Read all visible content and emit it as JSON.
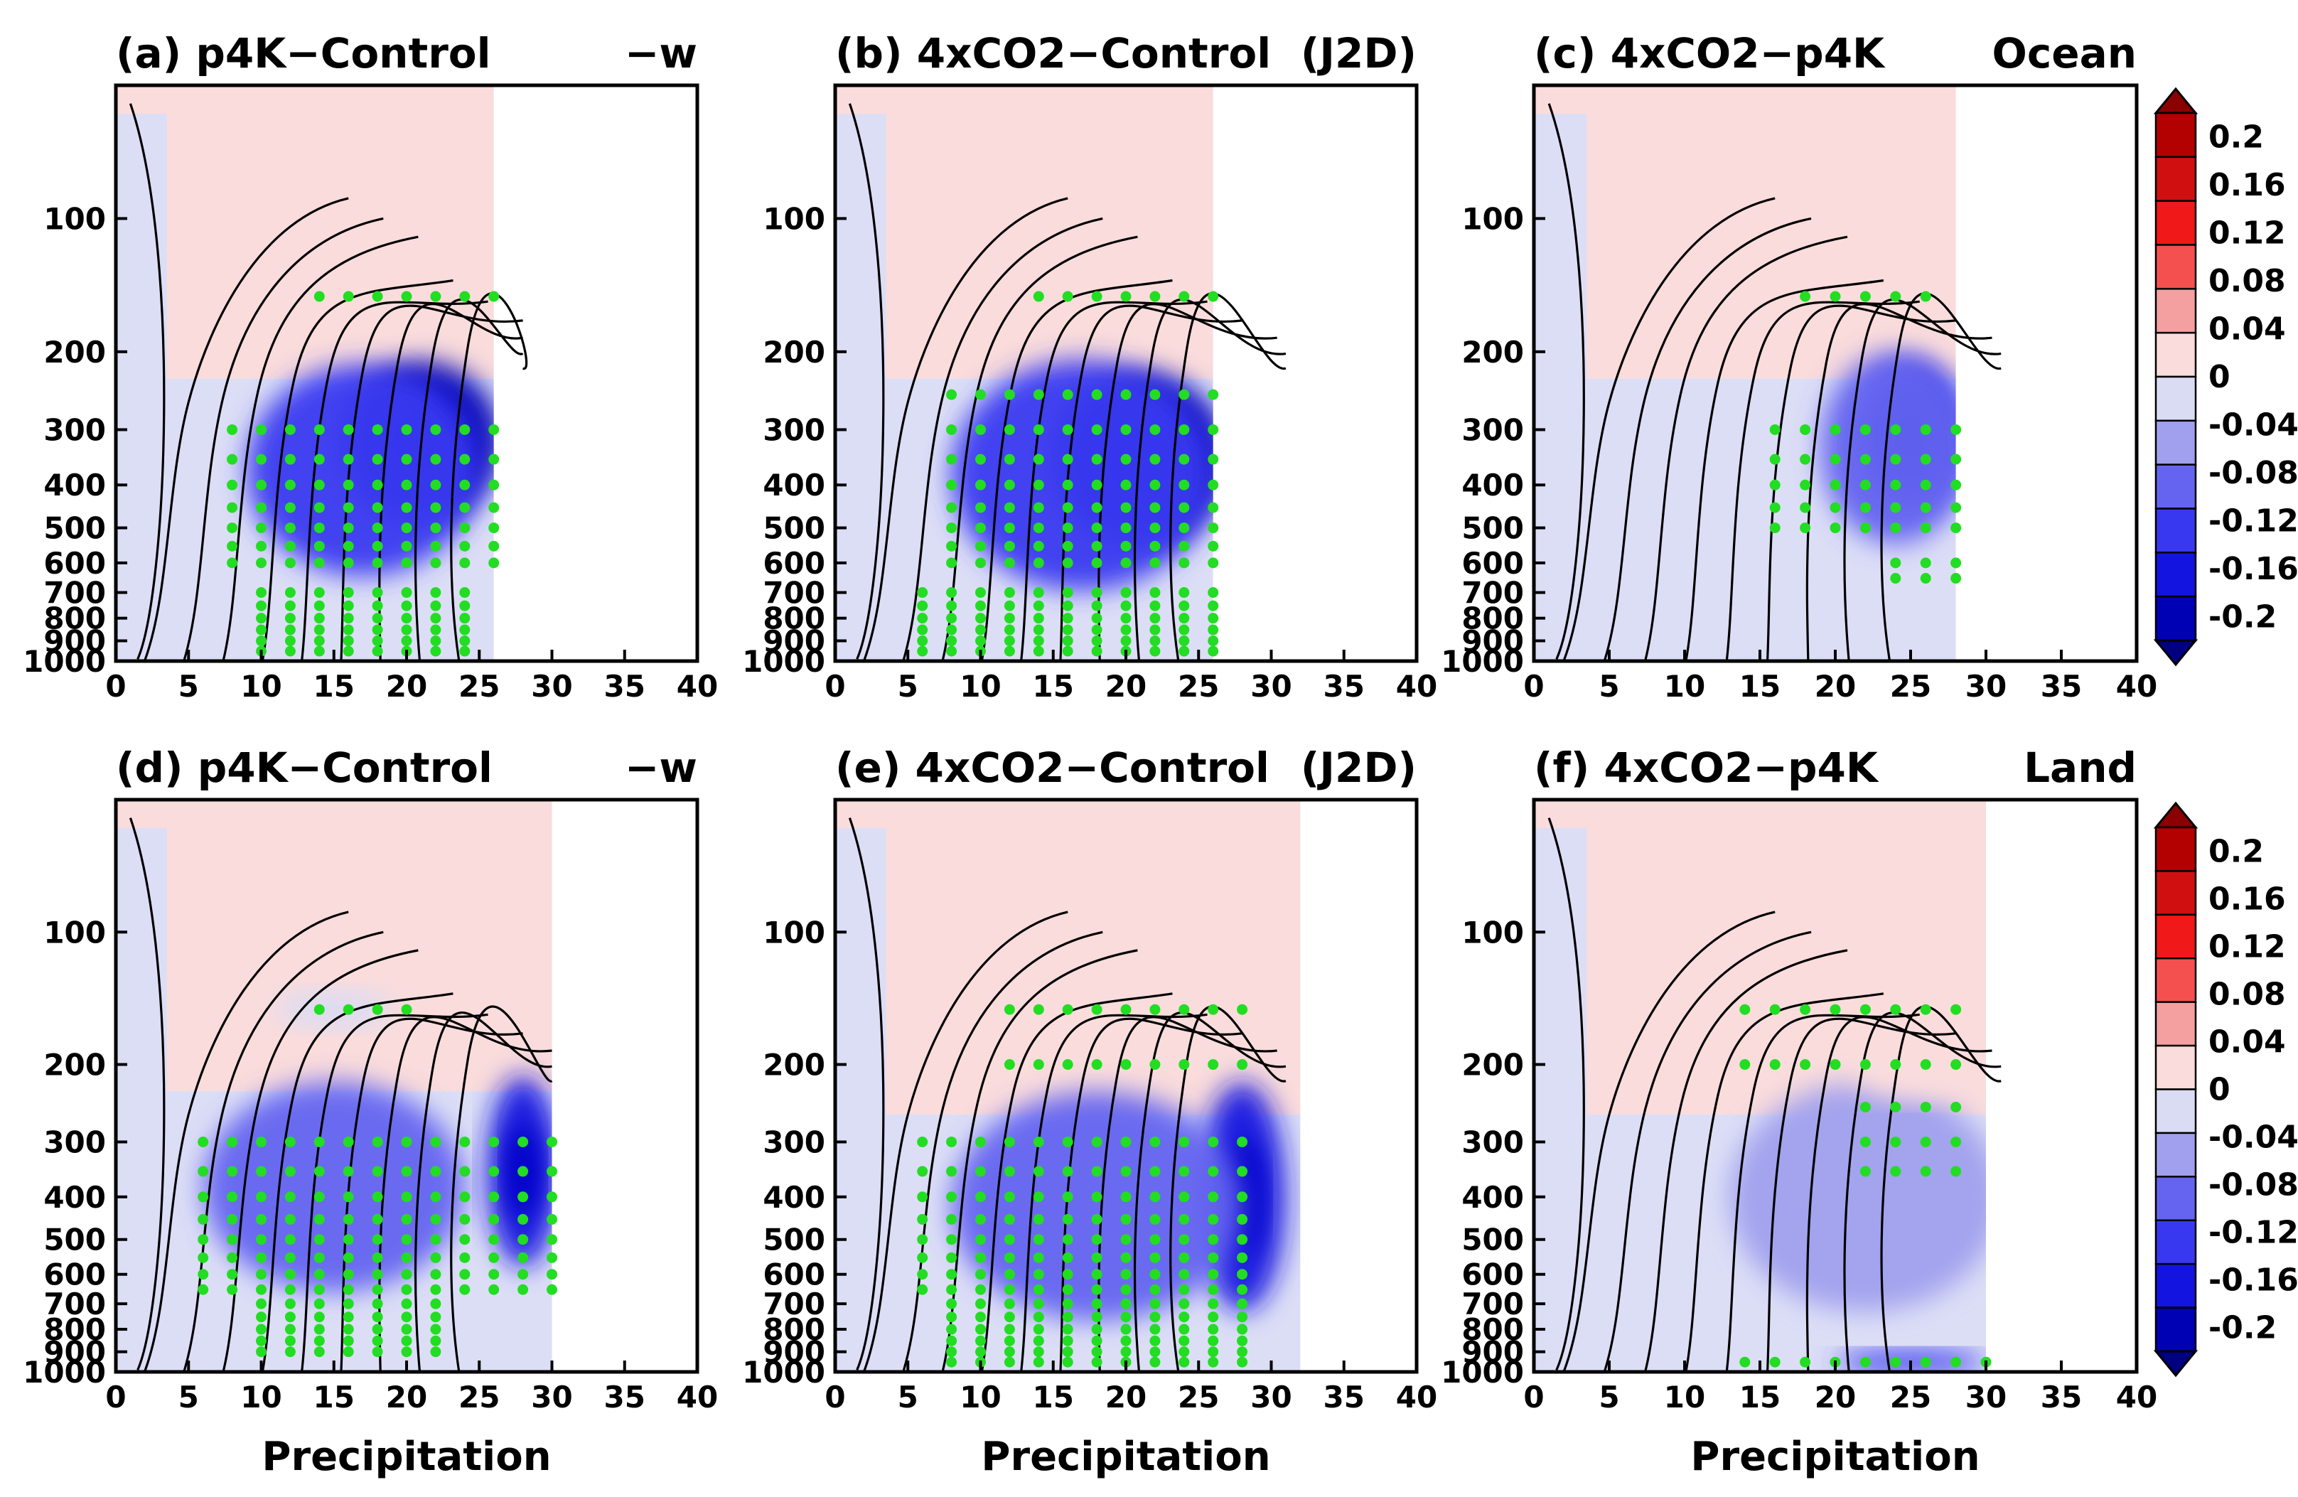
{
  "chart_data": {
    "type": "heatmap",
    "x_ticks": [
      0,
      5,
      10,
      15,
      20,
      25,
      30,
      35,
      40
    ],
    "xlim": [
      0,
      40
    ],
    "y_ticks": [
      100,
      200,
      300,
      400,
      500,
      600,
      700,
      800,
      900,
      1000
    ],
    "ylim": [
      1000,
      50
    ],
    "y_scale": "log",
    "colorbar": {
      "labels": [
        "0.2",
        "0.16",
        "0.12",
        "0.08",
        "0.04",
        "0",
        "-0.04",
        "-0.08",
        "-0.12",
        "-0.16",
        "-0.2"
      ],
      "levels": [
        0.2,
        0.16,
        0.12,
        0.08,
        0.04,
        0,
        -0.04,
        -0.08,
        -0.12,
        -0.16,
        -0.2
      ],
      "colors": [
        "#8b0000",
        "#b30000",
        "#d01010",
        "#f01818",
        "#f55050",
        "#f4a0a0",
        "#fadcdc",
        "#dadcf4",
        "#a0a0ee",
        "#6464f0",
        "#3838f0",
        "#1414e0",
        "#0000b4",
        "#000080"
      ]
    },
    "significance_color": "#22dd22",
    "panels": [
      {
        "id": "a",
        "title_left": "(a)  p4K−Control",
        "title_right": "−w",
        "xlabel": "",
        "x_max_data": 26,
        "blobs": [
          {
            "x": 21,
            "p": 320,
            "rx": 5.5,
            "ry": 0.42,
            "level": -0.18
          },
          {
            "x": 17,
            "p": 370,
            "rx": 8,
            "ry": 0.55,
            "level": -0.08
          },
          {
            "x": 16,
            "p": 150,
            "rx": 4,
            "ry": 0.12,
            "level": 0.05
          }
        ],
        "stipple": [
          {
            "x0": 14,
            "x1": 26,
            "p": [
              150
            ]
          },
          {
            "x0": 8,
            "x1": 26,
            "p": [
              300,
              350,
              400,
              450,
              500,
              550,
              600
            ]
          },
          {
            "x0": 10,
            "x1": 24,
            "p": [
              700,
              750,
              800,
              850,
              900,
              950
            ]
          }
        ]
      },
      {
        "id": "b",
        "title_left": "(b)  4xCO2−Control",
        "title_right": "(J2D)",
        "xlabel": "",
        "x_max_data": 26,
        "blobs": [
          {
            "x": 21,
            "p": 350,
            "rx": 6,
            "ry": 0.45,
            "level": -0.18
          },
          {
            "x": 17,
            "p": 380,
            "rx": 9,
            "ry": 0.6,
            "level": -0.08
          },
          {
            "x": 21,
            "p": 140,
            "rx": 6,
            "ry": 0.16,
            "level": 0.05
          }
        ],
        "stipple": [
          {
            "x0": 14,
            "x1": 26,
            "p": [
              150
            ]
          },
          {
            "x0": 8,
            "x1": 26,
            "p": [
              250,
              300,
              350,
              400,
              450,
              500,
              550,
              600
            ]
          },
          {
            "x0": 6,
            "x1": 26,
            "p": [
              700,
              750,
              800,
              850,
              900,
              950
            ]
          }
        ]
      },
      {
        "id": "c",
        "title_left": "(c)  4xCO2−p4K",
        "title_right": "Ocean",
        "xlabel": "",
        "x_max_data": 28,
        "blobs": [
          {
            "x": 25,
            "p": 310,
            "rx": 3.5,
            "ry": 0.38,
            "level": -0.12
          },
          {
            "x": 24,
            "p": 330,
            "rx": 5,
            "ry": 0.5,
            "level": -0.05
          },
          {
            "x": 22,
            "p": 150,
            "rx": 4,
            "ry": 0.12,
            "level": 0.05
          }
        ],
        "stipple": [
          {
            "x0": 18,
            "x1": 26,
            "p": [
              150
            ]
          },
          {
            "x0": 16,
            "x1": 28,
            "p": [
              300,
              350,
              400,
              450,
              500
            ]
          },
          {
            "x0": 24,
            "x1": 28,
            "p": [
              600,
              650
            ]
          }
        ]
      },
      {
        "id": "d",
        "title_left": "(d)  p4K−Control",
        "title_right": "−w",
        "xlabel": "Precipitation",
        "x_max_data": 30,
        "blobs": [
          {
            "x": 28,
            "p": 350,
            "rx": 2.5,
            "ry": 0.5,
            "level": -0.12
          },
          {
            "x": 15,
            "p": 380,
            "rx": 9,
            "ry": 0.55,
            "level": -0.05
          },
          {
            "x": 15,
            "p": 150,
            "rx": 4,
            "ry": 0.1,
            "level": 0.04
          }
        ],
        "stipple": [
          {
            "x0": 14,
            "x1": 20,
            "p": [
              150
            ]
          },
          {
            "x0": 6,
            "x1": 30,
            "p": [
              300,
              350,
              400,
              450,
              500,
              550,
              600,
              650
            ]
          },
          {
            "x0": 10,
            "x1": 22,
            "p": [
              700,
              750,
              800,
              850,
              900
            ]
          }
        ]
      },
      {
        "id": "e",
        "title_left": "(e)  4xCO2−Control",
        "title_right": "(J2D)",
        "xlabel": "Precipitation",
        "x_max_data": 32,
        "blobs": [
          {
            "x": 28,
            "p": 400,
            "rx": 3,
            "ry": 0.6,
            "level": -0.12
          },
          {
            "x": 18,
            "p": 420,
            "rx": 10,
            "ry": 0.6,
            "level": -0.05
          },
          {
            "x": 20,
            "p": 160,
            "rx": 8,
            "ry": 0.18,
            "level": 0.05
          }
        ],
        "stipple": [
          {
            "x0": 12,
            "x1": 28,
            "p": [
              150,
              200
            ]
          },
          {
            "x0": 6,
            "x1": 28,
            "p": [
              300,
              350,
              400,
              450,
              500,
              550,
              600,
              650
            ]
          },
          {
            "x0": 8,
            "x1": 28,
            "p": [
              700,
              750,
              800,
              850,
              900,
              950
            ]
          }
        ]
      },
      {
        "id": "f",
        "title_left": "(f)  4xCO2−p4K",
        "title_right": "Land",
        "xlabel": "Precipitation",
        "x_max_data": 30,
        "blobs": [
          {
            "x": 25,
            "p": 950,
            "rx": 5,
            "ry": 0.06,
            "level": -0.1
          },
          {
            "x": 22,
            "p": 400,
            "rx": 9,
            "ry": 0.6,
            "level": -0.03
          },
          {
            "x": 25,
            "p": 200,
            "rx": 4,
            "ry": 0.18,
            "level": 0.05
          }
        ],
        "stipple": [
          {
            "x0": 14,
            "x1": 28,
            "p": [
              150,
              200
            ]
          },
          {
            "x0": 22,
            "x1": 28,
            "p": [
              250,
              300,
              350
            ]
          },
          {
            "x0": 14,
            "x1": 30,
            "p": [
              950
            ]
          }
        ]
      }
    ]
  }
}
